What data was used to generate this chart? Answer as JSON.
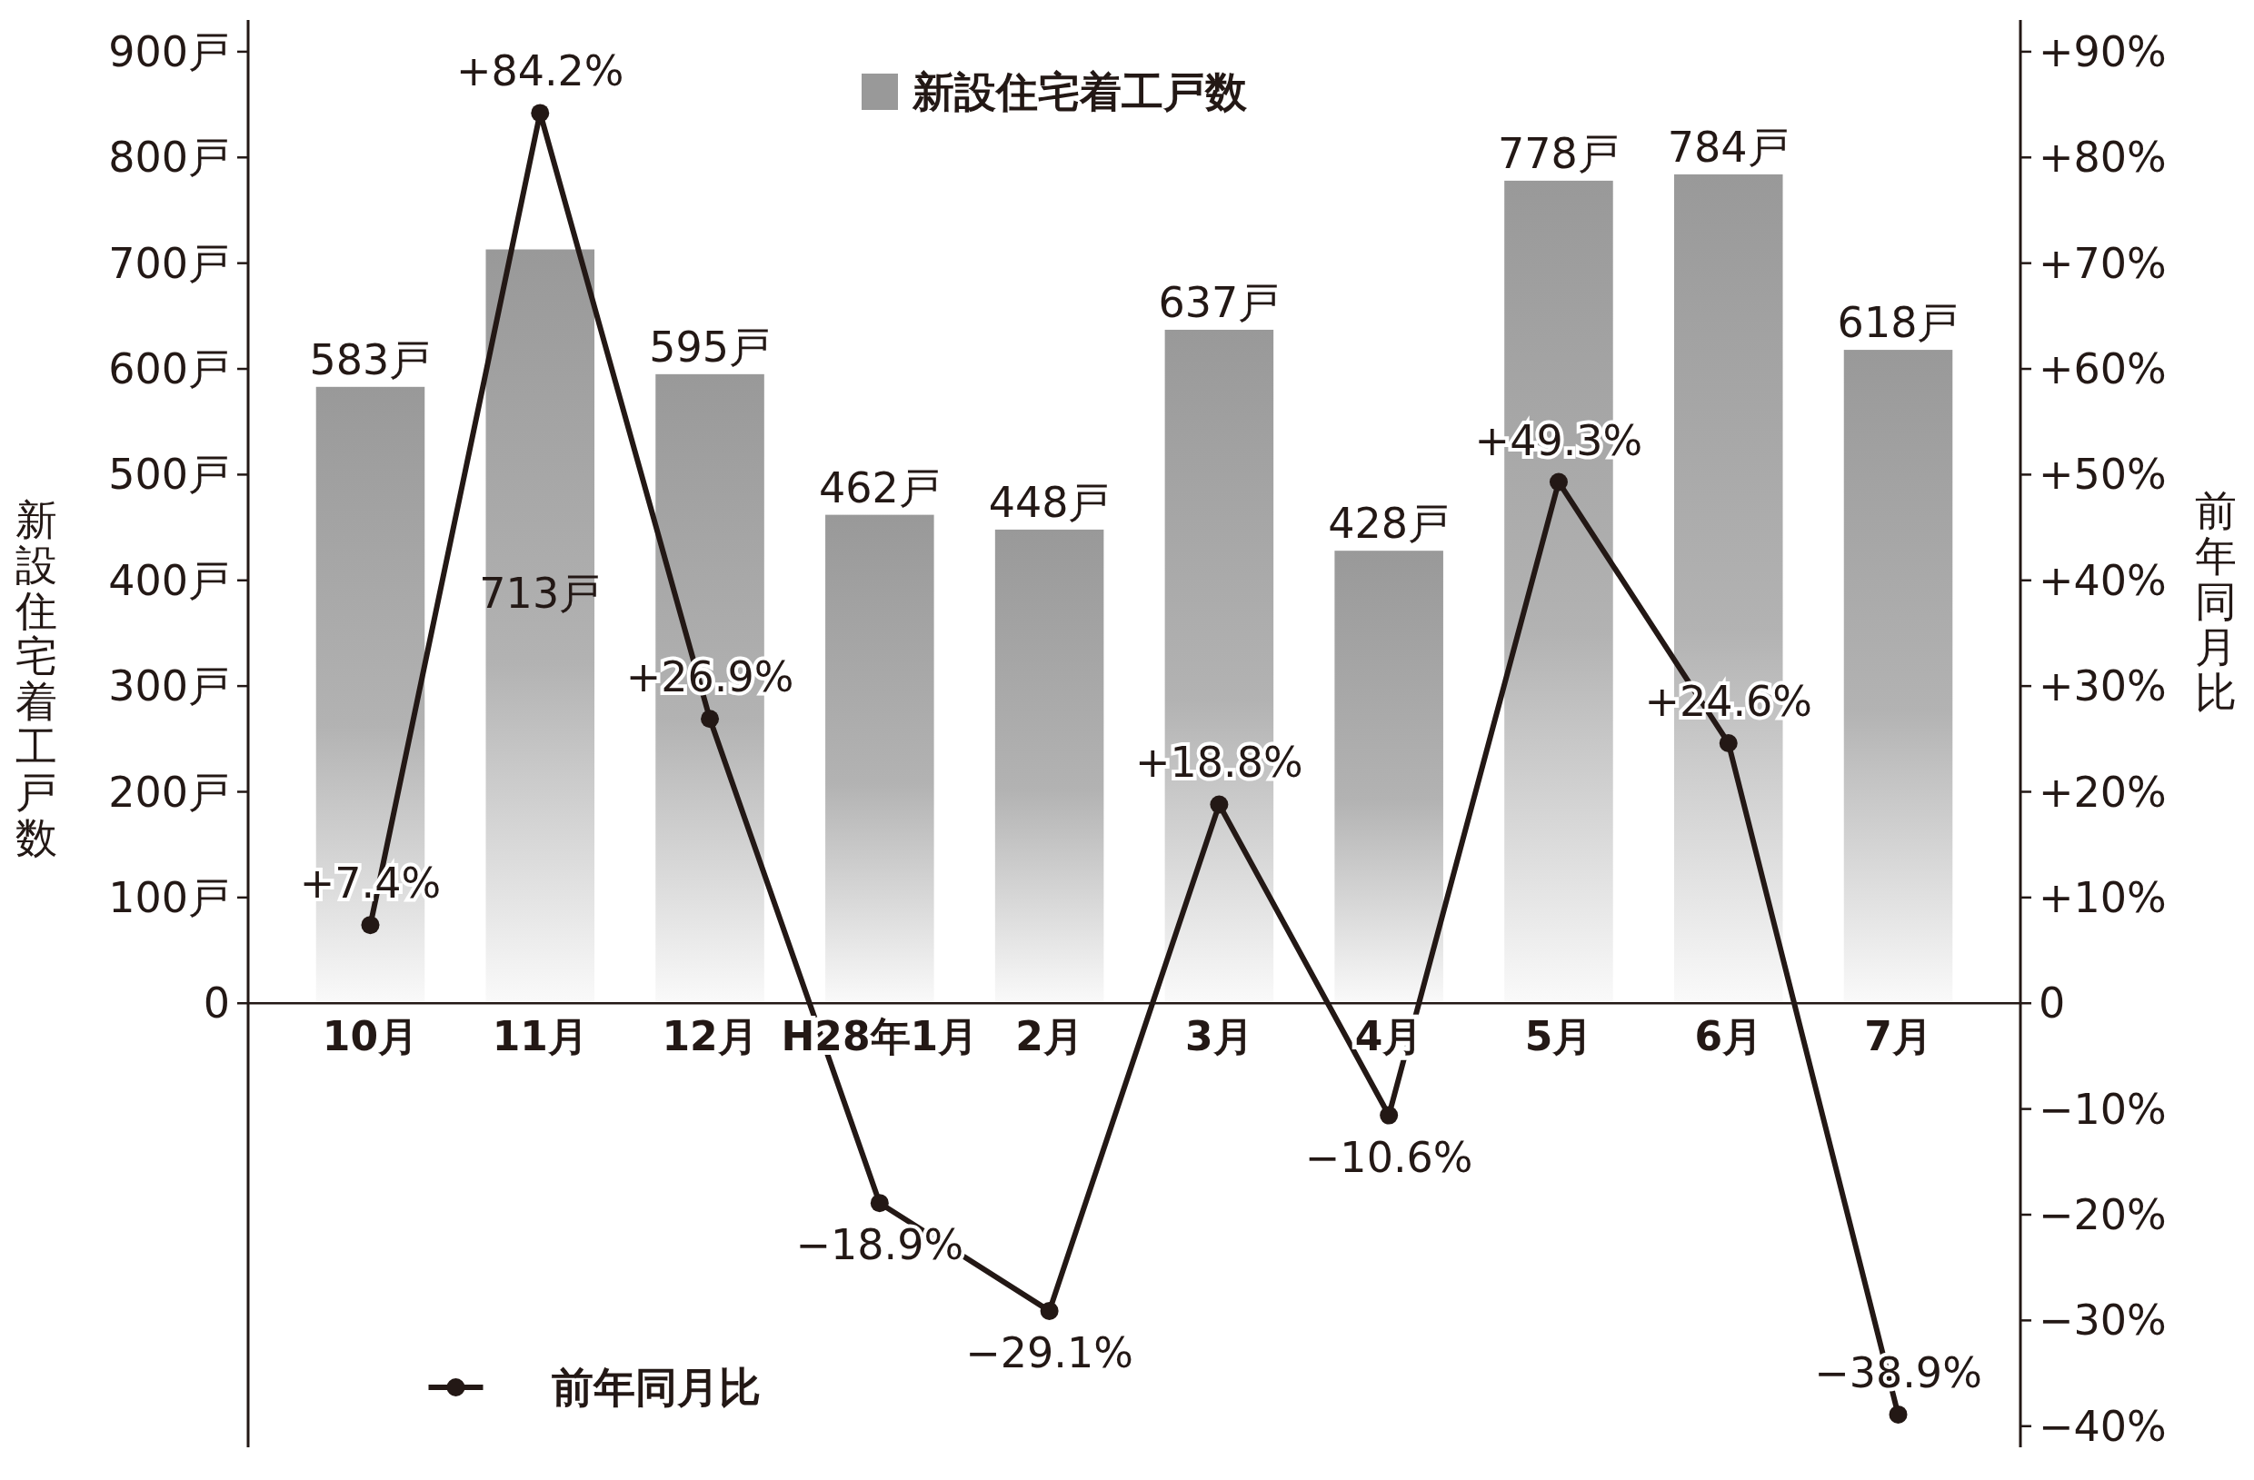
{
  "chart_data": {
    "type": "bar",
    "ylabel": "新設住宅着工戸数",
    "y2label": "前年同月比",
    "categories": [
      "10月",
      "11月",
      "12月",
      "H28年1月",
      "2月",
      "3月",
      "4月",
      "5月",
      "6月",
      "7月"
    ],
    "series": [
      {
        "name": "新設住宅着工戸数",
        "color": "#999999",
        "values": [
          583,
          713,
          595,
          462,
          448,
          637,
          428,
          778,
          784,
          618
        ],
        "value_labels": [
          "583戸",
          "713戸",
          "595戸",
          "462戸",
          "448戸",
          "637戸",
          "428戸",
          "778戸",
          "784戸",
          "618戸"
        ]
      },
      {
        "name": "前年同月比",
        "type": "line",
        "axis": "y2",
        "color": "#231815",
        "values": [
          7.4,
          84.2,
          26.9,
          -18.9,
          -29.1,
          18.8,
          -10.6,
          49.3,
          24.6,
          -38.9
        ],
        "value_labels": [
          "+7.4%",
          "+84.2%",
          "+26.9%",
          "−18.9%",
          "−29.1%",
          "+18.8%",
          "−10.6%",
          "+49.3%",
          "+24.6%",
          "−38.9%"
        ]
      }
    ],
    "ylim": [
      -420,
      930
    ],
    "yticks": [
      0,
      {
        "value": 100,
        "label": "100戸"
      },
      {
        "value": 200,
        "label": "200戸"
      },
      {
        "value": 300,
        "label": "300戸"
      },
      {
        "value": 400,
        "label": "400戸"
      },
      {
        "value": 500,
        "label": "500戸"
      },
      {
        "value": 600,
        "label": "600戸"
      },
      {
        "value": 700,
        "label": "700戸"
      },
      {
        "value": 800,
        "label": "800戸"
      },
      {
        "value": 900,
        "label": "900戸"
      }
    ],
    "y2lim": [
      -42,
      93
    ],
    "y2ticks": [
      {
        "value": -40,
        "label": "−40%"
      },
      {
        "value": -30,
        "label": "−30%"
      },
      {
        "value": -20,
        "label": "−20%"
      },
      {
        "value": -10,
        "label": "−10%"
      },
      0,
      {
        "value": 10,
        "label": "+10%"
      },
      {
        "value": 20,
        "label": "+20%"
      },
      {
        "value": 30,
        "label": "+30%"
      },
      {
        "value": 40,
        "label": "+40%"
      },
      {
        "value": 50,
        "label": "+50%"
      },
      {
        "value": 60,
        "label": "+60%"
      },
      {
        "value": 70,
        "label": "+70%"
      },
      {
        "value": 80,
        "label": "+80%"
      },
      {
        "value": 90,
        "label": "+90%"
      }
    ],
    "marker": "circle",
    "line_style": "solid",
    "legend": "left"
  }
}
